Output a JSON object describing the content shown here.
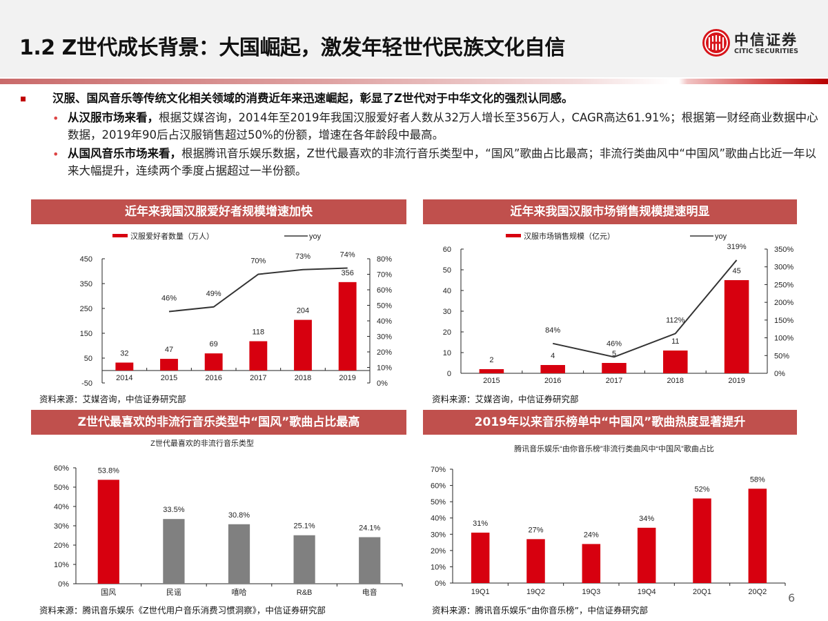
{
  "header": {
    "title": "1.2 Z世代成长背景：大国崛起，激发年轻世代民族文化自信",
    "logo_cn": "中信证券",
    "logo_en": "CITIC SECURITIES"
  },
  "summary": {
    "main_bullet": "汉服、国风音乐等传统文化相关领域的消费近年来迅速崛起，彰显了Z世代对于中华文化的强烈认同感。",
    "sub_bullets": [
      {
        "bold": "从汉服市场来看，",
        "text": "根据艾媒咨询，2014年至2019年我国汉服爱好者人数从32万人增长至356万人，CAGR高达61.91%；根据第一财经商业数据中心数据，2019年90后占汉服销售超过50%的份额，增速在各年龄段中最高。"
      },
      {
        "bold": "从国风音乐市场来看，",
        "text": "根据腾讯音乐娱乐数据，Z世代最喜欢的非流行音乐类型中，“国风”歌曲占比最高；非流行类曲风中“中国风”歌曲占比近一年以来大幅提升，连续两个季度占据超过一半份额。"
      }
    ]
  },
  "colors": {
    "accent_red": "#d7000f",
    "panel_header": "#c0504d",
    "bar_gray": "#808080",
    "line_dark": "#333333"
  },
  "panels": [
    {
      "title": "近年来我国汉服爱好者规模增速加快",
      "source": "资料来源：艾媒咨询，中信证券研究部"
    },
    {
      "title": "近年来我国汉服市场销售规模提速明显",
      "source": "资料来源：艾媒咨询，中信证券研究部"
    },
    {
      "title": "Z世代最喜欢的非流行音乐类型中“国风”歌曲占比最高",
      "source": "资料来源：腾讯音乐娱乐《Z世代用户音乐消费习惯洞察》，中信证券研究部"
    },
    {
      "title": "2019年以来音乐榜单中“中国风”歌曲热度显著提升",
      "source": "资料来源：腾讯音乐娱乐“由你音乐榜”，中信证券研究部"
    }
  ],
  "page_number": "6",
  "chart_data": [
    {
      "type": "bar+line",
      "title": "近年来我国汉服爱好者规模增速加快",
      "categories": [
        "2014",
        "2015",
        "2016",
        "2017",
        "2018",
        "2019"
      ],
      "series": [
        {
          "name": "汉服爱好者数量（万人）",
          "type": "bar",
          "axis": "left",
          "values": [
            32,
            47,
            69,
            118,
            204,
            356
          ],
          "labels": [
            "32",
            "47",
            "69",
            "118",
            "204",
            "356"
          ]
        },
        {
          "name": "yoy",
          "type": "line",
          "axis": "right",
          "values": [
            null,
            46,
            49,
            70,
            73,
            74
          ],
          "labels": [
            "",
            "46%",
            "49%",
            "70%",
            "73%",
            "74%"
          ]
        }
      ],
      "y_left": {
        "min": -50,
        "max": 450,
        "ticks": [
          "450",
          "350",
          "250",
          "150",
          "50",
          "-50"
        ]
      },
      "y_right": {
        "min": 0,
        "max": 80,
        "ticks": [
          "80%",
          "70%",
          "60%",
          "50%",
          "40%",
          "30%",
          "20%",
          "10%",
          "0%"
        ]
      },
      "legend": [
        "汉服爱好者数量（万人）",
        "yoy"
      ],
      "legend_position": "top"
    },
    {
      "type": "bar+line",
      "title": "近年来我国汉服市场销售规模提速明显",
      "categories": [
        "2015",
        "2016",
        "2017",
        "2018",
        "2019"
      ],
      "series": [
        {
          "name": "汉服市场销售规模（亿元）",
          "type": "bar",
          "axis": "left",
          "values": [
            2,
            4,
            5,
            11,
            45
          ],
          "labels": [
            "2",
            "4",
            "5",
            "11",
            "45"
          ]
        },
        {
          "name": "yoy",
          "type": "line",
          "axis": "right",
          "values": [
            null,
            84,
            46,
            112,
            319
          ],
          "labels": [
            "",
            "84%",
            "46%",
            "112%",
            "319%"
          ]
        }
      ],
      "y_left": {
        "min": 0,
        "max": 60,
        "ticks": [
          "60",
          "50",
          "40",
          "30",
          "20",
          "10",
          "0"
        ]
      },
      "y_right": {
        "min": 0,
        "max": 350,
        "ticks": [
          "350%",
          "300%",
          "250%",
          "200%",
          "150%",
          "100%",
          "50%",
          "0%"
        ]
      },
      "legend": [
        "汉服市场销售规模（亿元）",
        "yoy"
      ],
      "legend_position": "top"
    },
    {
      "type": "bar",
      "title": "Z世代最喜欢的非流行音乐类型",
      "categories": [
        "国风",
        "民谣",
        "嘻哈",
        "R&B",
        "电音"
      ],
      "values": [
        53.8,
        33.5,
        30.8,
        25.1,
        24.1
      ],
      "labels": [
        "53.8%",
        "33.5%",
        "30.8%",
        "25.1%",
        "24.1%"
      ],
      "colors": [
        "#d7000f",
        "#808080",
        "#808080",
        "#808080",
        "#808080"
      ],
      "ylim": [
        0,
        60
      ],
      "y_ticks": [
        "60%",
        "50%",
        "40%",
        "30%",
        "20%",
        "10%",
        "0%"
      ]
    },
    {
      "type": "bar",
      "title": "腾讯音乐娱乐“由你音乐榜”非流行类曲风中“中国风”歌曲占比",
      "categories": [
        "19Q1",
        "19Q2",
        "19Q3",
        "19Q4",
        "20Q1",
        "20Q2"
      ],
      "values": [
        31,
        27,
        24,
        34,
        52,
        58
      ],
      "labels": [
        "31%",
        "27%",
        "24%",
        "34%",
        "52%",
        "58%"
      ],
      "ylim": [
        0,
        70
      ],
      "y_ticks": [
        "70%",
        "60%",
        "50%",
        "40%",
        "30%",
        "20%",
        "10%",
        "0%"
      ]
    }
  ]
}
